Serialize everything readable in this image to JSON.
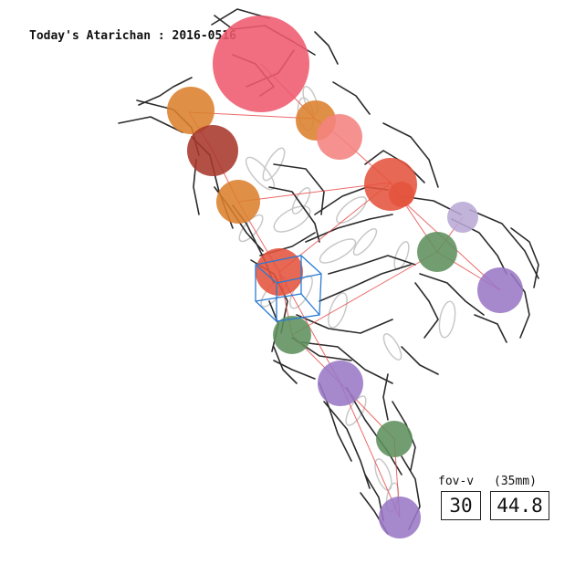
{
  "header": {
    "title": "Today's Atarichan : 2016-0516"
  },
  "fov": {
    "vertical_label": "fov-v",
    "lens_label": "(35mm)",
    "vertical_value": "30",
    "lens_value": "44.8"
  },
  "colors": {
    "head": "#ee5a6e",
    "skeleton": "#e85050",
    "sketch": "#2b2b2b",
    "ghost": "#c8c8c8",
    "camera_box": "#2a7bd4",
    "orange": "#dc7f2c",
    "dark_red": "#a8382c",
    "red_orange": "#e4533c",
    "green": "#5f8f5c",
    "purple": "#9a78c6",
    "lavender": "#b9a9d6",
    "salmon": "#f4837f"
  }
}
